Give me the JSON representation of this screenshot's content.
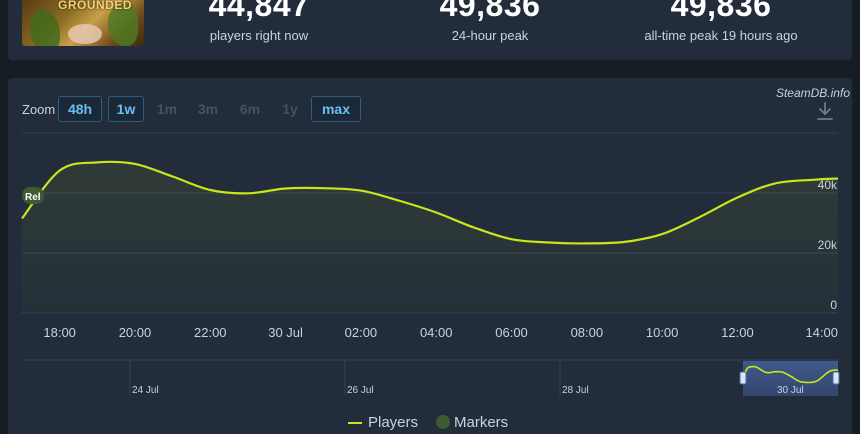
{
  "header": {
    "game_thumbnail_text": "GROUNDED",
    "stats": [
      {
        "value": "44,847",
        "label": "players right now"
      },
      {
        "value": "49,836",
        "label": "24-hour peak"
      },
      {
        "value": "49,836",
        "label": "all-time peak 19 hours ago"
      }
    ]
  },
  "credit": "SteamDB.info",
  "zoom": {
    "label": "Zoom",
    "buttons": [
      {
        "label": "48h",
        "active": true
      },
      {
        "label": "1w",
        "active": true
      },
      {
        "label": "1m",
        "active": false
      },
      {
        "label": "3m",
        "active": false
      },
      {
        "label": "6m",
        "active": false
      },
      {
        "label": "1y",
        "active": false
      },
      {
        "label": "max",
        "active": true
      }
    ]
  },
  "marker_flag": "Rel",
  "chart_data": {
    "type": "line",
    "series": [
      {
        "name": "Players",
        "color": "#c8e61a",
        "x": [
          17.0,
          18.0,
          19.0,
          20.0,
          21.0,
          22.0,
          23.0,
          24.0,
          25.0,
          26.0,
          27.0,
          28.0,
          29.0,
          30.0,
          31.0,
          32.0,
          33.0,
          34.0,
          35.0,
          36.0,
          37.0,
          38.0,
          38.67
        ],
        "y": [
          31500,
          47500,
          50200,
          49700,
          45500,
          41000,
          39900,
          41500,
          41600,
          40800,
          37500,
          33500,
          28500,
          24600,
          23500,
          23200,
          23700,
          26300,
          32000,
          38500,
          43200,
          44400,
          44847
        ]
      }
    ],
    "x_ticks": [
      "18:00",
      "20:00",
      "22:00",
      "30 Jul",
      "02:00",
      "04:00",
      "06:00",
      "08:00",
      "10:00",
      "12:00",
      "14:00"
    ],
    "y_ticks": [
      "40k",
      "20k",
      "0"
    ],
    "ylim": [
      0,
      60000
    ],
    "grid": true,
    "navigator_ticks": [
      "24 Jul",
      "26 Jul",
      "28 Jul",
      "30 Jul"
    ],
    "legend": {
      "position": "bottom-center",
      "entries": [
        {
          "label": "Players",
          "color": "#c8e61a"
        },
        {
          "label": "Markers",
          "color": "#3d5a33"
        }
      ]
    }
  }
}
